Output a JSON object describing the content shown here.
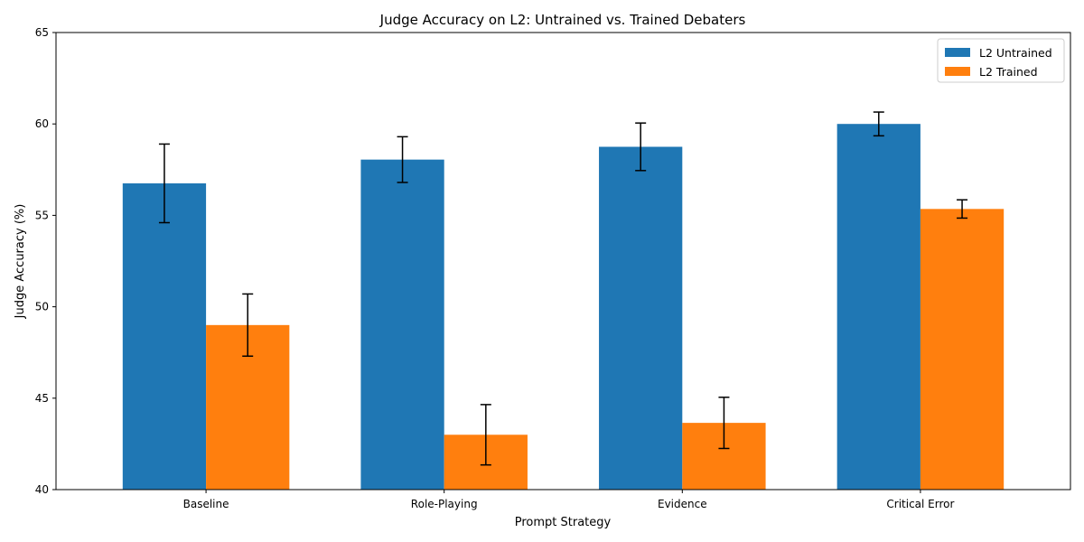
{
  "chart_data": {
    "type": "bar",
    "title": "Judge Accuracy on L2: Untrained vs. Trained Debaters",
    "xlabel": "Prompt Strategy",
    "ylabel": "Judge Accuracy (%)",
    "ylim": [
      40,
      65
    ],
    "yticks": [
      40,
      45,
      50,
      55,
      60,
      65
    ],
    "categories": [
      "Baseline",
      "Role-Playing",
      "Evidence",
      "Critical Error"
    ],
    "series": [
      {
        "name": "L2 Untrained",
        "color": "#1f77b4",
        "values": [
          56.75,
          58.05,
          58.75,
          60.0
        ],
        "errors": [
          2.15,
          1.25,
          1.3,
          0.65
        ]
      },
      {
        "name": "L2 Trained",
        "color": "#ff7f0e",
        "values": [
          49.0,
          43.0,
          43.65,
          55.35
        ],
        "errors": [
          1.7,
          1.65,
          1.4,
          0.5
        ]
      }
    ],
    "grid": false,
    "legend_position": "top-right"
  }
}
